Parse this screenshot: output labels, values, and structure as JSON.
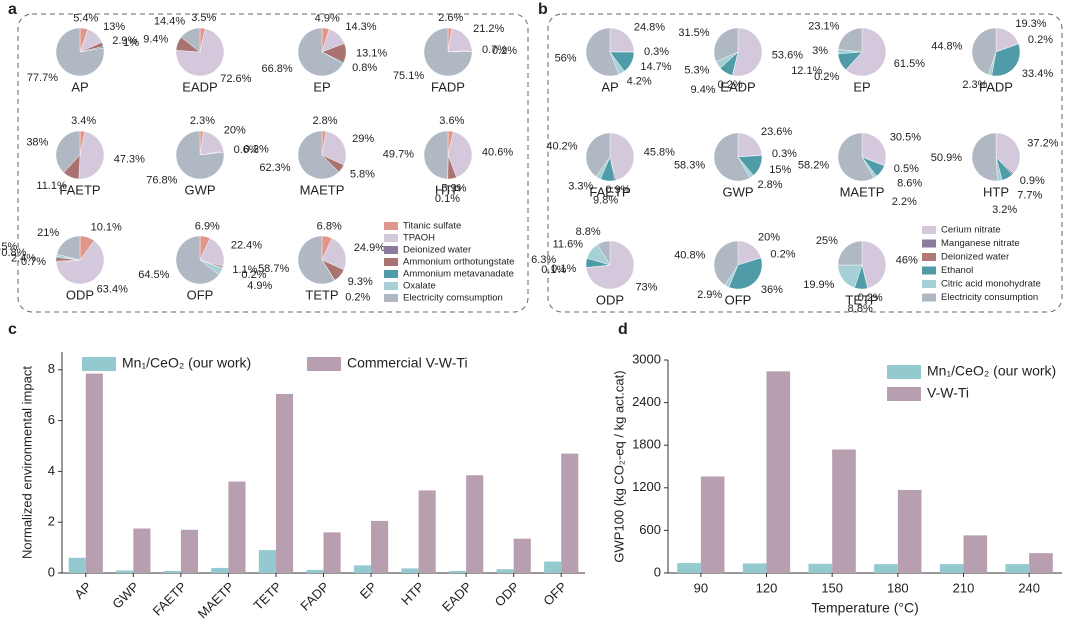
{
  "chart_data": [
    {
      "type": "pie",
      "panel": "a",
      "legend": {
        "names": [
          "Titanic sulfate",
          "TPAOH",
          "Deionized water",
          "Ammonium orthotungstate",
          "Ammonium metavanadate",
          "Oxalate",
          "Electricity comsumption"
        ],
        "colors": [
          "#e0968a",
          "#d4c8dc",
          "#8b7a9e",
          "#a87370",
          "#4f9ba8",
          "#a7d0d6",
          "#b0b8c4"
        ]
      },
      "pies": [
        {
          "title": "AP",
          "values": [
            5.4,
            13,
            null,
            2.9,
            1,
            null,
            77.7
          ],
          "value_labels": [
            "5.4%",
            "13%",
            null,
            "2.9%",
            "1%",
            null,
            "77.7%"
          ]
        },
        {
          "title": "EADP",
          "values": [
            3.5,
            72.6,
            null,
            9.4,
            null,
            null,
            14.4
          ],
          "value_labels": [
            "3.5%",
            "72.6%",
            null,
            "9.4%",
            null,
            null,
            "14.4%"
          ]
        },
        {
          "title": "EP",
          "values": [
            4.9,
            14.3,
            null,
            13.1,
            0.8,
            null,
            66.8
          ],
          "value_labels": [
            "4.9%",
            "14.3%",
            null,
            "13.1%",
            "0.8%",
            null,
            "66.8%"
          ]
        },
        {
          "title": "FADP",
          "values": [
            2.6,
            21.2,
            null,
            0.7,
            0.2,
            null,
            75.1
          ],
          "value_labels": [
            "2.6%",
            "21.2%",
            null,
            "0.7%",
            "0.2%",
            null,
            "75.1%"
          ]
        },
        {
          "title": "FAETP",
          "values": [
            3.4,
            47.3,
            null,
            11.1,
            null,
            null,
            38
          ],
          "value_labels": [
            "3.4%",
            "47.3%",
            null,
            "11.1%",
            null,
            null,
            "38%"
          ]
        },
        {
          "title": "GWP",
          "values": [
            2.3,
            20,
            null,
            0.6,
            0.2,
            null,
            76.8
          ],
          "value_labels": [
            "2.3%",
            "20%",
            null,
            "0.6%",
            "0.2%",
            null,
            "76.8%"
          ]
        },
        {
          "title": "MAETP",
          "values": [
            2.8,
            29,
            null,
            5.8,
            null,
            null,
            62.3
          ],
          "value_labels": [
            "2.8%",
            "29%",
            null,
            "5.8%",
            null,
            null,
            "62.3%"
          ]
        },
        {
          "title": "HTP",
          "values": [
            3.6,
            40.6,
            null,
            5.9,
            0.1,
            null,
            49.7
          ],
          "value_labels": [
            "3.6%",
            "40.6%",
            null,
            "5.9%",
            "0.1%",
            null,
            "49.7%"
          ]
        },
        {
          "title": "ODP",
          "values": [
            10.1,
            63.4,
            0.7,
            2.4,
            0.8,
            1.5,
            21
          ],
          "value_labels": [
            "10.1%",
            "63.4%",
            "0.7%",
            "2.4%",
            "0.8%",
            "1.5%",
            "21%"
          ]
        },
        {
          "title": "OFP",
          "values": [
            6.9,
            22.4,
            null,
            1.1,
            0.2,
            4.9,
            64.5
          ],
          "value_labels": [
            "6.9%",
            "22.4%",
            null,
            "1.1%",
            "0.2%",
            "4.9%",
            "64.5%"
          ]
        },
        {
          "title": "TETP",
          "values": [
            6.8,
            24.9,
            null,
            9.3,
            0.2,
            null,
            58.7
          ],
          "value_labels": [
            "6.8%",
            "24.9%",
            null,
            "9.3%",
            "0.2%",
            null,
            "58.7%"
          ]
        }
      ]
    },
    {
      "type": "pie",
      "panel": "b",
      "legend": {
        "names": [
          "Cerium nitrate",
          "Manganese nitrate",
          "Deionized water",
          "Ethanol",
          "Citric acid monohydrate",
          "Electricity consumption"
        ],
        "colors": [
          "#d4c8dc",
          "#8b7a9e",
          "#b07a78",
          "#4f9ba8",
          "#a7d0d6",
          "#b0b8c4"
        ]
      },
      "pies": [
        {
          "title": "AP",
          "values": [
            24.8,
            0.3,
            null,
            14.7,
            4.2,
            56
          ],
          "value_labels": [
            "24.8%",
            "0.3%",
            null,
            "14.7%",
            "4.2%",
            "56%"
          ]
        },
        {
          "title": "EADP",
          "values": [
            53.6,
            0.2,
            null,
            9.4,
            5.3,
            31.5
          ],
          "value_labels": [
            "53.6%",
            "0.2%",
            null,
            "9.4%",
            "5.3%",
            "31.5%"
          ]
        },
        {
          "title": "EP",
          "values": [
            61.5,
            0.2,
            null,
            12.1,
            3,
            23.1
          ],
          "value_labels": [
            "61.5%",
            "0.2%",
            null,
            "12.1%",
            "3%",
            "23.1%"
          ]
        },
        {
          "title": "FADP",
          "values": [
            19.3,
            0.2,
            null,
            33.4,
            2.3,
            44.8
          ],
          "value_labels": [
            "19.3%",
            "0.2%",
            null,
            "33.4%",
            "2.3%",
            "44.8%"
          ]
        },
        {
          "title": "FAETP",
          "values": [
            45.8,
            0.9,
            null,
            9.8,
            3.3,
            40.2
          ],
          "value_labels": [
            "45.8%",
            "0.9%",
            null,
            "9.8%",
            "3.3%",
            "40.2%"
          ]
        },
        {
          "title": "GWP",
          "values": [
            23.6,
            0.3,
            null,
            15,
            2.8,
            58.3
          ],
          "value_labels": [
            "23.6%",
            "0.3%",
            null,
            "15%",
            "2.8%",
            "58.3%"
          ]
        },
        {
          "title": "MAETP",
          "values": [
            30.5,
            0.5,
            null,
            8.6,
            2.2,
            58.2
          ],
          "value_labels": [
            "30.5%",
            "0.5%",
            null,
            "8.6%",
            "2.2%",
            "58.2%"
          ]
        },
        {
          "title": "HTP",
          "values": [
            37.2,
            0.9,
            null,
            7.7,
            3.2,
            50.9
          ],
          "value_labels": [
            "37.2%",
            "0.9%",
            null,
            "7.7%",
            "3.2%",
            "50.9%"
          ]
        },
        {
          "title": "ODP",
          "values": [
            73,
            0.1,
            0.1,
            6.3,
            11.6,
            8.8
          ],
          "value_labels": [
            "73%",
            "0.1%",
            "0.1%",
            "6.3%",
            "11.6%",
            "8.8%"
          ]
        },
        {
          "title": "OFP",
          "values": [
            20,
            0.2,
            null,
            36,
            2.9,
            40.8
          ],
          "value_labels": [
            "20%",
            "0.2%",
            null,
            "36%",
            "2.9%",
            "40.8%"
          ]
        },
        {
          "title": "TETP",
          "values": [
            46,
            0.2,
            null,
            8.8,
            19.9,
            25
          ],
          "value_labels": [
            "46%",
            "0.2%",
            null,
            "8.8%",
            "19.9%",
            "25%"
          ]
        }
      ]
    },
    {
      "type": "bar",
      "panel": "c",
      "ylabel": "Normalized environmental impact",
      "categories": [
        "AP",
        "GWP",
        "FAETP",
        "MAETP",
        "TETP",
        "FADP",
        "EP",
        "HTP",
        "EADP",
        "ODP",
        "OFP"
      ],
      "series": [
        {
          "name": "Mn₁/CeO₂ (our work)",
          "color": "#94c9cf",
          "values": [
            0.6,
            0.1,
            0.08,
            0.2,
            0.9,
            0.12,
            0.3,
            0.18,
            0.08,
            0.15,
            0.45
          ]
        },
        {
          "name": "Commercial V-W-Ti",
          "color": "#b89fb0",
          "values": [
            7.85,
            1.75,
            1.7,
            3.6,
            7.05,
            1.6,
            2.05,
            3.25,
            3.85,
            1.35,
            4.7
          ]
        }
      ],
      "ylim": [
        0,
        8.7
      ],
      "yticks": [
        0,
        2,
        4,
        6,
        8
      ],
      "legend": "top"
    },
    {
      "type": "bar",
      "panel": "d",
      "ylabel": "GWP100 (kg CO₂-eq / kg act.cat)",
      "xlabel": "Temperature (°C)",
      "categories": [
        "90",
        "120",
        "150",
        "180",
        "210",
        "240"
      ],
      "series": [
        {
          "name": "Mn₁/CeO₂ (our work)",
          "color": "#94c9cf",
          "values": [
            140,
            135,
            130,
            125,
            125,
            125
          ]
        },
        {
          "name": "V-W-Ti",
          "color": "#b89fb0",
          "values": [
            1360,
            2840,
            1740,
            1170,
            530,
            280
          ]
        }
      ],
      "ylim": [
        0,
        3000
      ],
      "yticks": [
        0,
        600,
        1200,
        1800,
        2400,
        3000
      ],
      "legend": "top-right"
    }
  ]
}
